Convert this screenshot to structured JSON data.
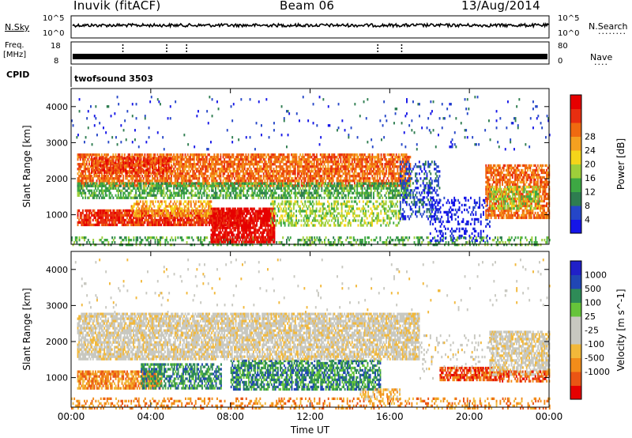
{
  "header": {
    "site": "Inuvik (fitACF)",
    "beam": "Beam 06",
    "date": "13/Aug/2014"
  },
  "top_panels": {
    "nsky_label": "N.Sky",
    "nsky_ticks": [
      "10^5",
      "10^0"
    ],
    "nsearch_label": "N.Search",
    "freq_label": "Freq.",
    "freq_unit": "[MHz]",
    "freq_ticks": [
      "18",
      "8"
    ],
    "nave_label": "Nave",
    "nave_ticks": [
      "80",
      "0"
    ],
    "cpid_label": "CPID",
    "cpid_value": "twofsound 3503"
  },
  "colors": {
    "power": [
      "#1515e8",
      "#2546c8",
      "#2e7d50",
      "#3da843",
      "#9ecf3a",
      "#f5d51a",
      "#f5a020",
      "#f06a10",
      "#e82e10",
      "#e60000"
    ],
    "velocity": [
      "#e60000",
      "#ea5514",
      "#f28c1a",
      "#f2b83a",
      "#c8c8c0",
      "#c8c8c0",
      "#66c43a",
      "#2e8b57",
      "#2046b4",
      "#2020c8"
    ]
  },
  "chart_data": [
    {
      "type": "heatmap",
      "name": "power",
      "ylabel": "Slant Range [km]",
      "xlabel": "",
      "yticks": [
        "1000",
        "2000",
        "3000",
        "4000"
      ],
      "ylim": [
        180,
        4500
      ],
      "xlim": [
        0,
        24
      ],
      "xticks": [
        0,
        4,
        8,
        12,
        16,
        20,
        24
      ],
      "colorbar_label": "Power [dB]",
      "colorbar_ticks": [
        "4",
        "8",
        "12",
        "16",
        "20",
        "24",
        "28"
      ],
      "colorbar_range": [
        0,
        30
      ],
      "regions": [
        {
          "t0": 0.0,
          "t1": 24.0,
          "r0": 180,
          "r1": 400,
          "c": 3,
          "d": 0.35
        },
        {
          "t0": 0.3,
          "t1": 8.5,
          "r0": 700,
          "r1": 1150,
          "c": 8,
          "d": 0.85
        },
        {
          "t0": 7.0,
          "t1": 10.2,
          "r0": 250,
          "r1": 1200,
          "c": 9,
          "d": 0.8
        },
        {
          "t0": 3.0,
          "t1": 7.0,
          "r0": 1000,
          "r1": 1400,
          "c": 6,
          "d": 0.55
        },
        {
          "t0": 10.0,
          "t1": 16.5,
          "r0": 700,
          "r1": 1400,
          "c": 4,
          "d": 0.45
        },
        {
          "t0": 0.3,
          "t1": 17.0,
          "r0": 1800,
          "r1": 2700,
          "c": 7,
          "d": 0.75
        },
        {
          "t0": 0.3,
          "t1": 17.0,
          "r0": 1450,
          "r1": 1900,
          "c": 3,
          "d": 0.6
        },
        {
          "t0": 1.0,
          "t1": 5.0,
          "r0": 2200,
          "r1": 2600,
          "c": 8,
          "d": 0.6
        },
        {
          "t0": 16.5,
          "t1": 18.5,
          "r0": 900,
          "r1": 2500,
          "c": 1,
          "d": 0.35
        },
        {
          "t0": 18.0,
          "t1": 21.0,
          "r0": 300,
          "r1": 1500,
          "c": 0,
          "d": 0.25
        },
        {
          "t0": 20.8,
          "t1": 24.0,
          "r0": 900,
          "r1": 2400,
          "c": 7,
          "d": 0.7
        },
        {
          "t0": 21.0,
          "t1": 23.5,
          "r0": 1200,
          "r1": 1800,
          "c": 4,
          "d": 0.5
        },
        {
          "t0": 0.0,
          "t1": 24.0,
          "r0": 2800,
          "r1": 4300,
          "c": 1,
          "d": 0.025
        }
      ]
    },
    {
      "type": "heatmap",
      "name": "velocity",
      "ylabel": "Slant Range [km]",
      "xlabel": "Time UT",
      "xticklabels": [
        "00:00",
        "04:00",
        "08:00",
        "12:00",
        "16:00",
        "20:00",
        "00:00"
      ],
      "yticks": [
        "1000",
        "2000",
        "3000",
        "4000"
      ],
      "ylim": [
        180,
        4500
      ],
      "xlim": [
        0,
        24
      ],
      "xticks": [
        0,
        4,
        8,
        12,
        16,
        20,
        24
      ],
      "colorbar_label": "Velocity [m s^-1]",
      "colorbar_ticks": [
        "1000",
        "500",
        "100",
        "25",
        "-25",
        "-100",
        "-500",
        "-1000"
      ],
      "regions": [
        {
          "t0": 0.0,
          "t1": 24.0,
          "r0": 180,
          "r1": 450,
          "c": 2,
          "d": 0.3
        },
        {
          "t0": 0.3,
          "t1": 4.5,
          "r0": 700,
          "r1": 1200,
          "c": 2,
          "d": 0.75
        },
        {
          "t0": 3.5,
          "t1": 7.5,
          "r0": 700,
          "r1": 1400,
          "c": 7,
          "d": 0.6
        },
        {
          "t0": 8.0,
          "t1": 15.5,
          "r0": 700,
          "r1": 1500,
          "c": 7,
          "d": 0.65
        },
        {
          "t0": 14.5,
          "t1": 16.5,
          "r0": 400,
          "r1": 700,
          "c": 3,
          "d": 0.5
        },
        {
          "t0": 0.3,
          "t1": 17.5,
          "r0": 1500,
          "r1": 2800,
          "c": 4,
          "d": 0.75
        },
        {
          "t0": 17.5,
          "t1": 21.0,
          "r0": 1000,
          "r1": 2200,
          "c": 4,
          "d": 0.12
        },
        {
          "t0": 18.5,
          "t1": 21.5,
          "r0": 950,
          "r1": 1300,
          "c": 1,
          "d": 0.75
        },
        {
          "t0": 21.0,
          "t1": 24.0,
          "r0": 1100,
          "r1": 2300,
          "c": 4,
          "d": 0.7
        },
        {
          "t0": 21.5,
          "t1": 24.0,
          "r0": 900,
          "r1": 1200,
          "c": 1,
          "d": 0.55
        },
        {
          "t0": 0.0,
          "t1": 24.0,
          "r0": 2800,
          "r1": 4300,
          "c": 4,
          "d": 0.02
        }
      ]
    }
  ]
}
